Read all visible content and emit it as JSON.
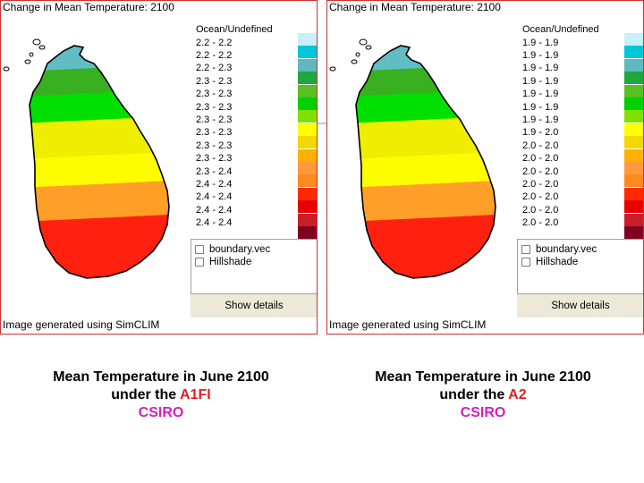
{
  "colors": {
    "legend": [
      "#c8f0f8",
      "#00c8d8",
      "#60b8c0",
      "#20a840",
      "#58c020",
      "#00d000",
      "#80e000",
      "#ffff00",
      "#f0d800",
      "#ffb000",
      "#ff9a3c",
      "#ff8a20",
      "#ff2a00",
      "#e80000",
      "#c81e2a",
      "#800020"
    ],
    "map_bands": [
      "#60bdc3",
      "#38b020",
      "#00e000",
      "#f0ee00",
      "#fdfd00",
      "#ff9f28",
      "#ff2010",
      "#800020"
    ],
    "scenario": "#e02020",
    "model": "#d020c0"
  },
  "panels": [
    {
      "title": "Change in Mean Temperature: 2100",
      "legend_header": "Ocean/Undefined",
      "legend_labels": [
        "2.2 - 2.2",
        "2.2 - 2.2",
        "2.2 - 2.3",
        "2.3 - 2.3",
        "2.3 - 2.3",
        "2.3 - 2.3",
        "2.3 - 2.3",
        "2.3 - 2.3",
        "2.3 - 2.3",
        "2.3 - 2.3",
        "2.3 - 2.4",
        "2.4 - 2.4",
        "2.4 - 2.4",
        "2.4 - 2.4",
        "2.4 - 2.4"
      ],
      "layers": [
        "boundary.vec",
        "Hillshade"
      ],
      "details_button": "Show details",
      "footer": "Image generated using SimCLIM",
      "caption": {
        "line1": "Mean Temperature in June 2100",
        "line2_prefix": "under the ",
        "scenario": "A1FI",
        "model": "CSIRO"
      }
    },
    {
      "title": "Change in Mean Temperature: 2100",
      "legend_header": "Ocean/Undefined",
      "legend_labels": [
        "1.9 - 1.9",
        "1.9 - 1.9",
        "1.9 - 1.9",
        "1.9 - 1.9",
        "1.9 - 1.9",
        "1.9 - 1.9",
        "1.9 - 1.9",
        "1.9 - 2.0",
        "2.0 - 2.0",
        "2.0 - 2.0",
        "2.0 - 2.0",
        "2.0 - 2.0",
        "2.0 - 2.0",
        "2.0 - 2.0",
        "2.0 - 2.0"
      ],
      "layers": [
        "boundary.vec",
        "Hillshade"
      ],
      "details_button": "Show details",
      "footer": "Image generated using SimCLIM",
      "caption": {
        "line1": "Mean Temperature in June 2100",
        "line2_prefix": "under the ",
        "scenario": "A2",
        "model": "CSIRO"
      }
    }
  ]
}
